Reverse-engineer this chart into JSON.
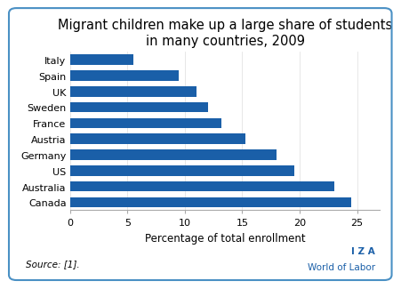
{
  "title": "Migrant children make up a large share of students\nin many countries, 2009",
  "countries": [
    "Canada",
    "Australia",
    "US",
    "Germany",
    "Austria",
    "France",
    "Sweden",
    "UK",
    "Spain",
    "Italy"
  ],
  "values": [
    24.5,
    23.0,
    19.5,
    18.0,
    15.3,
    13.2,
    12.0,
    11.0,
    9.5,
    5.5
  ],
  "bar_color": "#1a5fa8",
  "xlabel": "Percentage of total enrollment",
  "xlim": [
    0,
    27
  ],
  "xticks": [
    0,
    5,
    10,
    15,
    20,
    25
  ],
  "source_text": "Source: [1].",
  "iza_text": "I Z A",
  "wol_text": "World of Labor",
  "background_color": "#ffffff",
  "border_color": "#4a90c4",
  "title_fontsize": 10.5,
  "axis_fontsize": 8.5,
  "tick_fontsize": 8,
  "source_fontsize": 7.5,
  "iza_fontsize": 7.5
}
